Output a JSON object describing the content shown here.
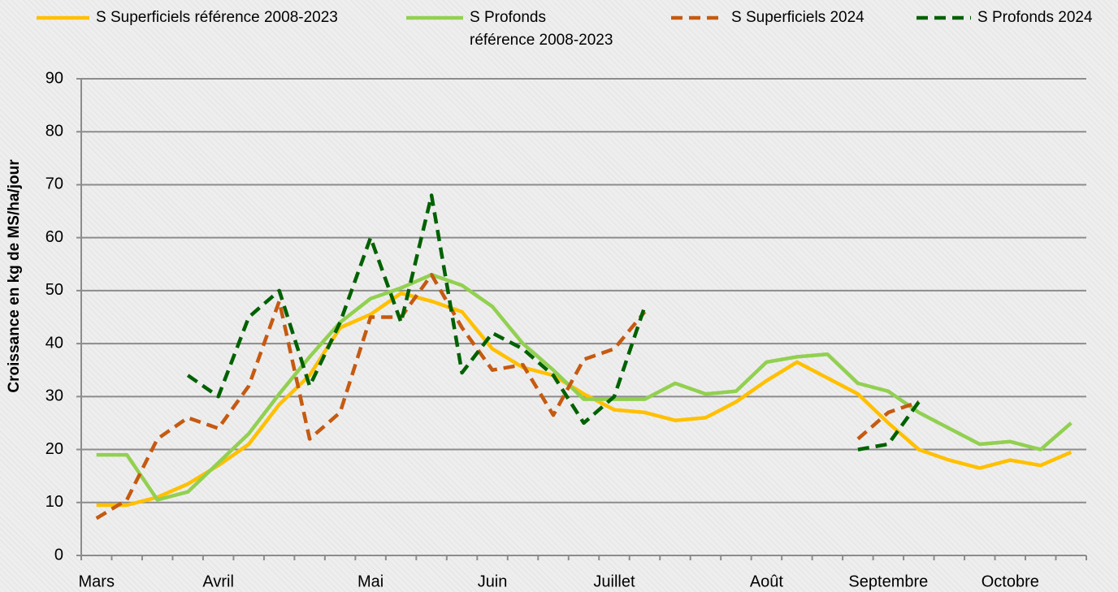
{
  "chart_data": {
    "type": "line",
    "y_label": "Croissance en kg de MS/ha/jour",
    "categories": [
      "Mars",
      null,
      null,
      null,
      "Avril",
      null,
      null,
      null,
      null,
      "Mai",
      null,
      null,
      null,
      "Juin",
      null,
      null,
      null,
      "Juillet",
      null,
      null,
      null,
      null,
      "Août",
      null,
      null,
      null,
      "Septembre",
      null,
      null,
      null,
      "Octobre",
      null,
      null
    ],
    "ylim": [
      0,
      90
    ],
    "yticks": [
      0,
      10,
      20,
      30,
      40,
      50,
      60,
      70,
      80,
      90
    ],
    "grid": true,
    "series": [
      {
        "name": "S Superficiels référence 2008-2023",
        "color": "#ffc000",
        "dash": false,
        "values": [
          9.5,
          9.5,
          11,
          13.5,
          17,
          21,
          28.5,
          34,
          43,
          45.5,
          49.5,
          48,
          46,
          39,
          35.5,
          34,
          30.5,
          27.5,
          27,
          25.5,
          26,
          29,
          33,
          36.5,
          33.5,
          30.5,
          25,
          20,
          18,
          16.5,
          18,
          17,
          19.5
        ]
      },
      {
        "name": "S Profonds\nréférence 2008-2023",
        "color": "#92d050",
        "dash": false,
        "values": [
          19,
          19,
          10.5,
          12,
          17.5,
          23,
          30.5,
          37.5,
          44,
          48.5,
          50.5,
          53,
          51,
          47,
          40,
          35,
          29.5,
          29.5,
          29.5,
          32.5,
          30.5,
          31,
          36.5,
          37.5,
          38,
          32.5,
          31,
          27,
          24,
          21,
          21.5,
          20,
          25
        ]
      },
      {
        "name": "S Superficiels 2024",
        "color": "#c55a11",
        "dash": true,
        "values": [
          7,
          10.5,
          22,
          26,
          24,
          32,
          48,
          22,
          27,
          45,
          45,
          53,
          43,
          35,
          36,
          26.5,
          37,
          39,
          46,
          null,
          null,
          null,
          null,
          null,
          null,
          22,
          27,
          29,
          null,
          null,
          null,
          null,
          null
        ]
      },
      {
        "name": "S Profonds 2024",
        "color": "#006100",
        "dash": true,
        "values": [
          null,
          null,
          null,
          34,
          30,
          45,
          50,
          32,
          44,
          60,
          44,
          68,
          34.5,
          42,
          39,
          34,
          25,
          30,
          47,
          null,
          null,
          null,
          null,
          null,
          null,
          20,
          21,
          29,
          null,
          null,
          null,
          null,
          null
        ]
      }
    ]
  }
}
